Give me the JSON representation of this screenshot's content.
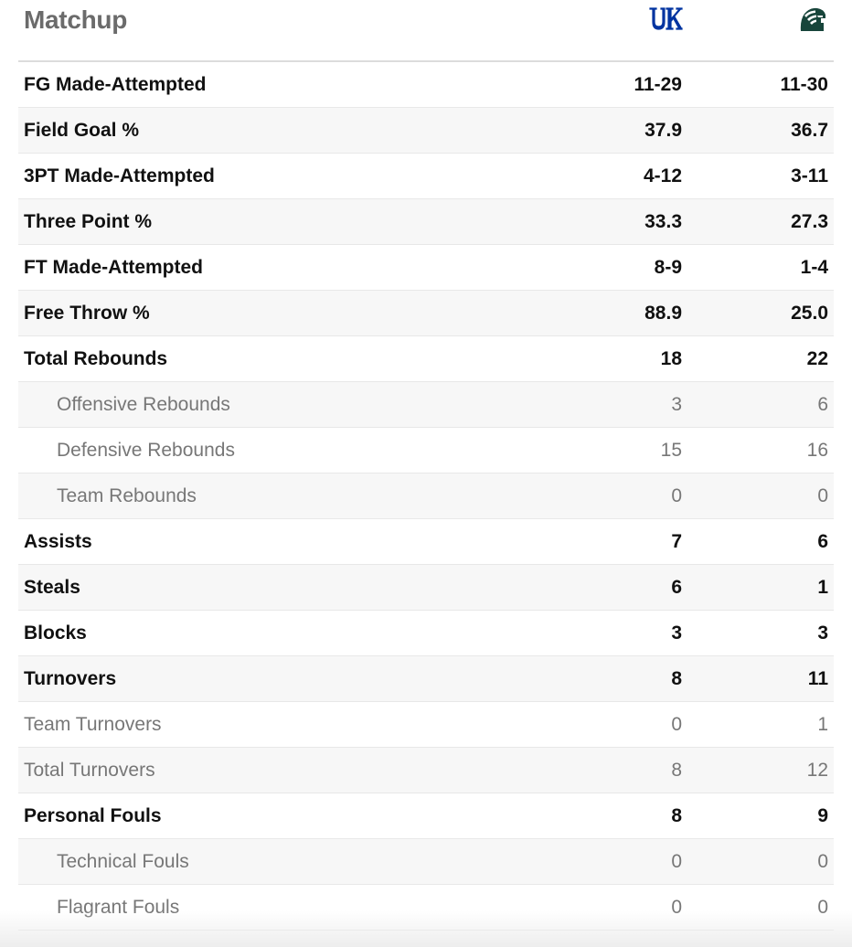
{
  "header": {
    "title": "Matchup",
    "team1_logo_icon": "kentucky-uk-logo-icon",
    "team2_logo_icon": "michigan-state-spartan-logo-icon",
    "team1_color": "#0033a0",
    "team2_color": "#18453b"
  },
  "rows": [
    {
      "label": "FG Made-Attempted",
      "team1": "11-29",
      "team2": "11-30",
      "style": "main",
      "indent": false
    },
    {
      "label": "Field Goal %",
      "team1": "37.9",
      "team2": "36.7",
      "style": "main",
      "indent": false
    },
    {
      "label": "3PT Made-Attempted",
      "team1": "4-12",
      "team2": "3-11",
      "style": "main",
      "indent": false
    },
    {
      "label": "Three Point %",
      "team1": "33.3",
      "team2": "27.3",
      "style": "main",
      "indent": false
    },
    {
      "label": "FT Made-Attempted",
      "team1": "8-9",
      "team2": "1-4",
      "style": "main",
      "indent": false
    },
    {
      "label": "Free Throw %",
      "team1": "88.9",
      "team2": "25.0",
      "style": "main",
      "indent": false
    },
    {
      "label": "Total Rebounds",
      "team1": "18",
      "team2": "22",
      "style": "main",
      "indent": false
    },
    {
      "label": "Offensive Rebounds",
      "team1": "3",
      "team2": "6",
      "style": "sub",
      "indent": true
    },
    {
      "label": "Defensive Rebounds",
      "team1": "15",
      "team2": "16",
      "style": "sub",
      "indent": true
    },
    {
      "label": "Team Rebounds",
      "team1": "0",
      "team2": "0",
      "style": "sub",
      "indent": true
    },
    {
      "label": "Assists",
      "team1": "7",
      "team2": "6",
      "style": "main",
      "indent": false
    },
    {
      "label": "Steals",
      "team1": "6",
      "team2": "1",
      "style": "main",
      "indent": false
    },
    {
      "label": "Blocks",
      "team1": "3",
      "team2": "3",
      "style": "main",
      "indent": false
    },
    {
      "label": "Turnovers",
      "team1": "8",
      "team2": "11",
      "style": "main",
      "indent": false
    },
    {
      "label": "Team Turnovers",
      "team1": "0",
      "team2": "1",
      "style": "sub",
      "indent": false
    },
    {
      "label": "Total Turnovers",
      "team1": "8",
      "team2": "12",
      "style": "sub",
      "indent": false
    },
    {
      "label": "Personal Fouls",
      "team1": "8",
      "team2": "9",
      "style": "main",
      "indent": false
    },
    {
      "label": "Technical Fouls",
      "team1": "0",
      "team2": "0",
      "style": "sub",
      "indent": true
    },
    {
      "label": "Flagrant Fouls",
      "team1": "0",
      "team2": "0",
      "style": "sub",
      "indent": true
    }
  ]
}
